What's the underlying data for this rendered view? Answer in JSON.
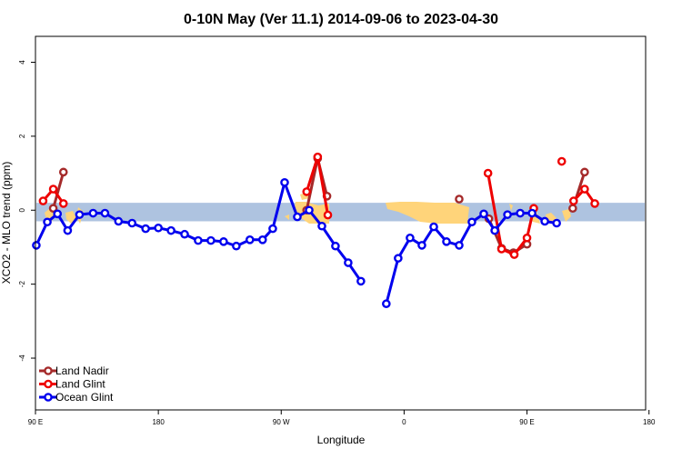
{
  "chart_data": {
    "type": "line",
    "title": "0-10N May (Ver 11.1)   2014-09-06 to 2023-04-30",
    "xlabel": "Longitude",
    "ylabel": "XCO2 - MLO trend (ppm)",
    "xlim": [
      90,
      450
    ],
    "ylim": [
      -5.4,
      4.7
    ],
    "x_ticks": [
      {
        "value": 90,
        "label": "90 E"
      },
      {
        "value": 180,
        "label": "180"
      },
      {
        "value": 270,
        "label": "90 W"
      },
      {
        "value": 360,
        "label": "0"
      },
      {
        "value": 450,
        "label": "90 E"
      },
      {
        "value": 540,
        "label": "180"
      }
    ],
    "x_tick_values_display": [
      90,
      162.5,
      235,
      307.5,
      380,
      452
    ],
    "y_ticks": [
      {
        "value": -4,
        "label": "-4"
      },
      {
        "value": -2,
        "label": "-2"
      },
      {
        "value": 0,
        "label": "0"
      },
      {
        "value": 2,
        "label": "2"
      },
      {
        "value": 4,
        "label": "4"
      }
    ],
    "reference_band": {
      "ymin": -0.3,
      "ymax": 0.2,
      "color": "#aec3e0"
    },
    "land_color": "#ffd47a",
    "grid": false,
    "legend_position": "bottom-left",
    "series": [
      {
        "name": "Land Nadir",
        "color": "#a52a2a",
        "segments": [
          [
            [
              100.5,
              0.05
            ],
            [
              106.5,
              1.03
            ]
          ],
          [
            [
              250.0,
              0.0
            ],
            [
              256.5,
              1.4
            ],
            [
              262.0,
              0.38
            ]
          ],
          [
            [
              340.0,
              0.3
            ]
          ],
          [
            [
              357.5,
              -0.23
            ],
            [
              365.0,
              -1.03
            ],
            [
              372.0,
              -1.15
            ],
            [
              380.0,
              -0.92
            ]
          ],
          [
            [
              407.0,
              0.05
            ],
            [
              414.0,
              1.03
            ]
          ]
        ]
      },
      {
        "name": "Land Glint",
        "color": "#ee0000",
        "segments": [
          [
            [
              94.5,
              0.25
            ],
            [
              100.5,
              0.57
            ],
            [
              106.5,
              0.18
            ]
          ],
          [
            [
              250.0,
              0.5
            ],
            [
              256.5,
              1.44
            ],
            [
              262.5,
              -0.13
            ]
          ],
          [
            [
              357.0,
              1.0
            ],
            [
              365.0,
              -1.05
            ],
            [
              372.5,
              -1.2
            ],
            [
              380.0,
              -0.75
            ],
            [
              384.0,
              0.05
            ]
          ],
          [
            [
              400.5,
              1.32
            ]
          ],
          [
            [
              407.5,
              0.25
            ],
            [
              414.0,
              0.57
            ],
            [
              420.0,
              0.18
            ]
          ]
        ]
      },
      {
        "name": "Ocean Glint",
        "color": "#0000ee",
        "segments": [
          [
            [
              90.5,
              -0.95
            ],
            [
              97.0,
              -0.32
            ],
            [
              103.0,
              -0.1
            ],
            [
              109.0,
              -0.55
            ],
            [
              116.0,
              -0.12
            ],
            [
              124.0,
              -0.08
            ],
            [
              131.0,
              -0.08
            ],
            [
              139.0,
              -0.3
            ],
            [
              147.0,
              -0.35
            ],
            [
              155.0,
              -0.5
            ],
            [
              162.5,
              -0.48
            ],
            [
              170.0,
              -0.55
            ],
            [
              178.0,
              -0.65
            ],
            [
              186.0,
              -0.82
            ],
            [
              193.5,
              -0.82
            ],
            [
              201.0,
              -0.85
            ],
            [
              208.5,
              -0.97
            ],
            [
              216.5,
              -0.8
            ],
            [
              224.0,
              -0.8
            ],
            [
              230.0,
              -0.5
            ],
            [
              237.0,
              0.75
            ],
            [
              244.5,
              -0.18
            ],
            [
              251.5,
              0.0
            ],
            [
              259.0,
              -0.43
            ],
            [
              267.0,
              -0.97
            ],
            [
              274.5,
              -1.42
            ],
            [
              282.0,
              -1.92
            ]
          ],
          [
            [
              297.0,
              -2.53
            ],
            [
              304.0,
              -1.3
            ],
            [
              311.0,
              -0.75
            ],
            [
              318.0,
              -0.95
            ],
            [
              325.0,
              -0.45
            ],
            [
              332.5,
              -0.85
            ],
            [
              340.0,
              -0.95
            ],
            [
              347.5,
              -0.32
            ],
            [
              354.5,
              -0.1
            ],
            [
              361.0,
              -0.55
            ],
            [
              368.5,
              -0.12
            ],
            [
              376.0,
              -0.08
            ],
            [
              383.0,
              -0.08
            ],
            [
              390.5,
              -0.3
            ],
            [
              397.5,
              -0.35
            ]
          ]
        ]
      }
    ]
  }
}
